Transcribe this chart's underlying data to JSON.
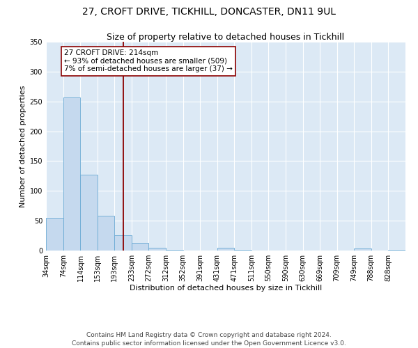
{
  "title": "27, CROFT DRIVE, TICKHILL, DONCASTER, DN11 9UL",
  "subtitle": "Size of property relative to detached houses in Tickhill",
  "xlabel": "Distribution of detached houses by size in Tickhill",
  "ylabel": "Number of detached properties",
  "bin_labels": [
    "34sqm",
    "74sqm",
    "114sqm",
    "153sqm",
    "193sqm",
    "233sqm",
    "272sqm",
    "312sqm",
    "352sqm",
    "391sqm",
    "431sqm",
    "471sqm",
    "511sqm",
    "550sqm",
    "590sqm",
    "630sqm",
    "669sqm",
    "709sqm",
    "749sqm",
    "788sqm",
    "828sqm"
  ],
  "bin_edges": [
    34,
    74,
    114,
    153,
    193,
    233,
    272,
    312,
    352,
    391,
    431,
    471,
    511,
    550,
    590,
    630,
    669,
    709,
    749,
    788,
    828,
    868
  ],
  "bar_heights": [
    55,
    257,
    127,
    58,
    26,
    13,
    5,
    1,
    0,
    0,
    5,
    1,
    0,
    0,
    0,
    0,
    0,
    0,
    4,
    0,
    1
  ],
  "bar_color": "#c5d9ee",
  "bar_edge_color": "#6aaad4",
  "vline_x": 214,
  "vline_color": "#8b0000",
  "annotation_line1": "27 CROFT DRIVE: 214sqm",
  "annotation_line2": "← 93% of detached houses are smaller (509)",
  "annotation_line3": "7% of semi-detached houses are larger (37) →",
  "annotation_box_color": "#ffffff",
  "annotation_box_edge": "#8b0000",
  "ylim": [
    0,
    350
  ],
  "yticks": [
    0,
    50,
    100,
    150,
    200,
    250,
    300,
    350
  ],
  "background_color": "#dce9f5",
  "footer_line1": "Contains HM Land Registry data © Crown copyright and database right 2024.",
  "footer_line2": "Contains public sector information licensed under the Open Government Licence v3.0.",
  "title_fontsize": 10,
  "subtitle_fontsize": 9,
  "axis_label_fontsize": 8,
  "tick_fontsize": 7,
  "annotation_fontsize": 7.5,
  "footer_fontsize": 6.5
}
